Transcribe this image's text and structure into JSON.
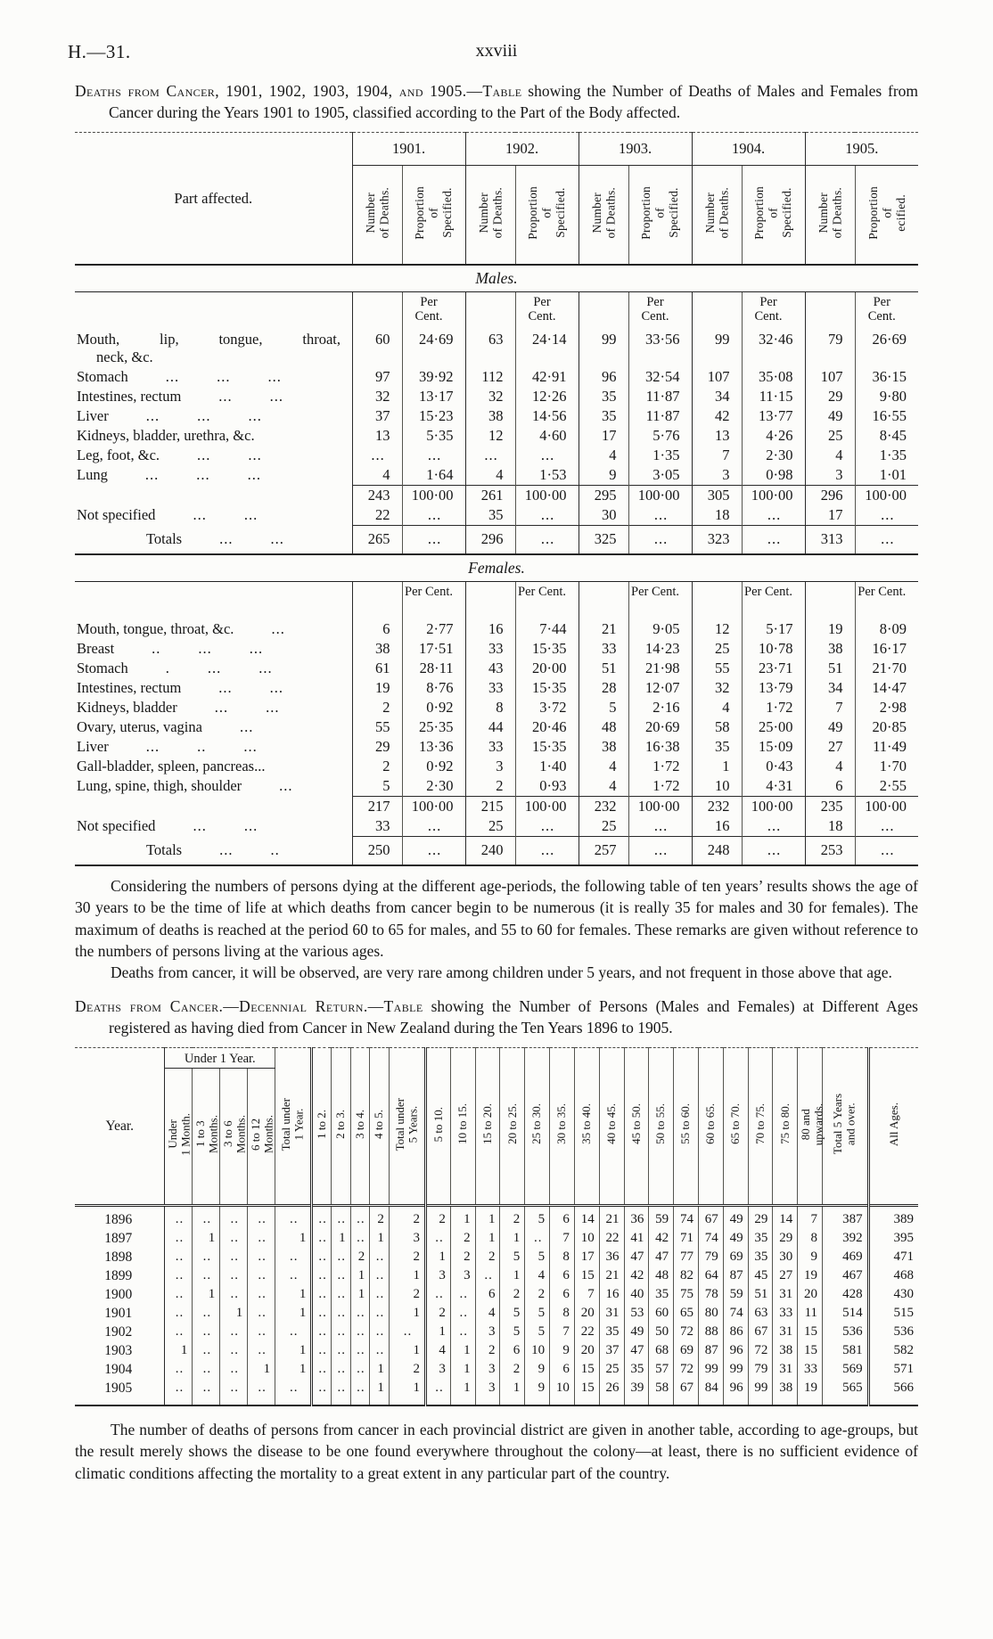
{
  "page": {
    "doc_ref": "H.—31.",
    "page_number": "xxviii"
  },
  "intro": {
    "lead": "Deaths from Cancer, 1901, 1902, 1903, 1904, and 1905.—Table",
    "rest": " showing the Number of Deaths of Males and Females from Cancer during the Years 1901 to 1905, classified according to the Part of the Body affected."
  },
  "table1": {
    "part_header": "Part affected.",
    "years": [
      "1901.",
      "1902.",
      "1903.",
      "1904.",
      "1905."
    ],
    "col_num_label": [
      "Number",
      "of Deaths."
    ],
    "col_prop_label": [
      "Proportion",
      "of",
      "Specified."
    ],
    "col_prop_label_last": [
      "Proportion",
      "of",
      "ecified."
    ],
    "males": {
      "label": "Males.",
      "percent_label": [
        "Per",
        "Cent."
      ],
      "rows": [
        {
          "part": "Mouth, lip, tongue, throat,",
          "part2": "neck, &c.",
          "justify": true,
          "dots": [],
          "values": [
            "60",
            "24·69",
            "63",
            "24·14",
            "99",
            "33·56",
            "99",
            "32·46",
            "79",
            "26·69"
          ]
        },
        {
          "part": "Stomach",
          "dots": [
            "...",
            "...",
            "..."
          ],
          "values": [
            "97",
            "39·92",
            "112",
            "42·91",
            "96",
            "32·54",
            "107",
            "35·08",
            "107",
            "36·15"
          ]
        },
        {
          "part": "Intestines, rectum",
          "dots": [
            "...",
            "..."
          ],
          "values": [
            "32",
            "13·17",
            "32",
            "12·26",
            "35",
            "11·87",
            "34",
            "11·15",
            "29",
            "9·80"
          ]
        },
        {
          "part": "Liver",
          "dots": [
            "...",
            "...",
            "..."
          ],
          "values": [
            "37",
            "15·23",
            "38",
            "14·56",
            "35",
            "11·87",
            "42",
            "13·77",
            "49",
            "16·55"
          ]
        },
        {
          "part": "Kidneys, bladder, urethra, &c.",
          "dots": [],
          "values": [
            "13",
            "5·35",
            "12",
            "4·60",
            "17",
            "5·76",
            "13",
            "4·26",
            "25",
            "8·45"
          ]
        },
        {
          "part": "Leg, foot, &c.",
          "dots": [
            "...",
            "..."
          ],
          "values": [
            "...",
            "...",
            "...",
            "...",
            "4",
            "1·35",
            "7",
            "2·30",
            "4",
            "1·35"
          ]
        },
        {
          "part": "Lung",
          "dots": [
            "...",
            "...",
            "..."
          ],
          "values": [
            "4",
            "1·64",
            "4",
            "1·53",
            "9",
            "3·05",
            "3",
            "0·98",
            "3",
            "1·01"
          ]
        }
      ],
      "subtotal": [
        "243",
        "100·00",
        "261",
        "100·00",
        "295",
        "100·00",
        "305",
        "100·00",
        "296",
        "100·00"
      ],
      "not_specified": {
        "part": "Not specified",
        "dots": [
          "...",
          "..."
        ],
        "values": [
          "22",
          "...",
          "35",
          "...",
          "30",
          "...",
          "18",
          "...",
          "17",
          "..."
        ]
      },
      "totals": {
        "part": "Totals",
        "dots": [
          "...",
          "..."
        ],
        "values": [
          "265",
          "...",
          "296",
          "...",
          "325",
          "...",
          "323",
          "...",
          "313",
          "..."
        ]
      }
    },
    "females": {
      "label": "Females.",
      "percent_label": [
        "Per Cent."
      ],
      "rows": [
        {
          "part": "Mouth, tongue, throat, &c.",
          "dots": [
            "..."
          ],
          "values": [
            "6",
            "2·77",
            "16",
            "7·44",
            "21",
            "9·05",
            "12",
            "5·17",
            "19",
            "8·09"
          ]
        },
        {
          "part": "Breast",
          "dots": [
            "..",
            "...",
            "..."
          ],
          "values": [
            "38",
            "17·51",
            "33",
            "15·35",
            "33",
            "14·23",
            "25",
            "10·78",
            "38",
            "16·17"
          ]
        },
        {
          "part": "Stomach",
          "dots": [
            ".",
            "...",
            "..."
          ],
          "values": [
            "61",
            "28·11",
            "43",
            "20·00",
            "51",
            "21·98",
            "55",
            "23·71",
            "51",
            "21·70"
          ]
        },
        {
          "part": "Intestines, rectum",
          "dots": [
            "...",
            "..."
          ],
          "values": [
            "19",
            "8·76",
            "33",
            "15·35",
            "28",
            "12·07",
            "32",
            "13·79",
            "34",
            "14·47"
          ]
        },
        {
          "part": "Kidneys, bladder",
          "dots": [
            "...",
            "..."
          ],
          "values": [
            "2",
            "0·92",
            "8",
            "3·72",
            "5",
            "2·16",
            "4",
            "1·72",
            "7",
            "2·98"
          ]
        },
        {
          "part": "Ovary, uterus, vagina",
          "dots": [
            "..."
          ],
          "values": [
            "55",
            "25·35",
            "44",
            "20·46",
            "48",
            "20·69",
            "58",
            "25·00",
            "49",
            "20·85"
          ]
        },
        {
          "part": "Liver",
          "dots": [
            "...",
            "..",
            "..."
          ],
          "values": [
            "29",
            "13·36",
            "33",
            "15·35",
            "38",
            "16·38",
            "35",
            "15·09",
            "27",
            "11·49"
          ]
        },
        {
          "part": "Gall-bladder, spleen, pancreas...",
          "dots": [],
          "values": [
            "2",
            "0·92",
            "3",
            "1·40",
            "4",
            "1·72",
            "1",
            "0·43",
            "4",
            "1·70"
          ]
        },
        {
          "part": "Lung, spine, thigh, shoulder",
          "dots": [
            "..."
          ],
          "values": [
            "5",
            "2·30",
            "2",
            "0·93",
            "4",
            "1·72",
            "10",
            "4·31",
            "6",
            "2·55"
          ]
        }
      ],
      "subtotal": [
        "217",
        "100·00",
        "215",
        "100·00",
        "232",
        "100·00",
        "232",
        "100·00",
        "235",
        "100·00"
      ],
      "not_specified": {
        "part": "Not specified",
        "dots": [
          "...",
          "..."
        ],
        "values": [
          "33",
          "...",
          "25",
          "...",
          "25",
          "...",
          "16",
          "...",
          "18",
          "..."
        ]
      },
      "totals": {
        "part": "Totals",
        "dots": [
          "...",
          ".."
        ],
        "values": [
          "250",
          "...",
          "240",
          "...",
          "257",
          "...",
          "248",
          "...",
          "253",
          "..."
        ]
      }
    }
  },
  "paragraphs": {
    "p1": "Considering the numbers of persons dying at the different age-periods, the following table of ten years’ results shows the age of 30 years to be the time of life at which deaths from cancer begin to be numerous (it is really 35 for males and 30 for females).  The maximum of deaths is reached at the period 60 to 65 for males, and 55 to 60 for females.  These remarks are given without reference to the numbers of persons living at the various ages.",
    "p2": "Deaths from cancer, it will be observed, are very rare among children under 5 years, and not frequent in those above that age."
  },
  "heading2": {
    "lead": "Deaths from Cancer.—Decennial Return.—Table",
    "rest": " showing the Number of Persons (Males and Females) at Different Ages registered as having died from Cancer in New Zealand during the Ten Years 1896 to 1905."
  },
  "table2": {
    "year_header": "Year.",
    "group_header": "Under 1 Year.",
    "month_cols": [
      [
        "Under",
        "1 Month."
      ],
      [
        "1 to 3",
        "Months."
      ],
      [
        "3 to 6",
        "Months."
      ],
      [
        "6 to 12",
        "Months."
      ]
    ],
    "cols": [
      [
        "Total under",
        "1 Year."
      ],
      [
        "1 to 2."
      ],
      [
        "2 to 3."
      ],
      [
        "3 to 4."
      ],
      [
        "4 to 5."
      ],
      [
        "Total under",
        "5 Years."
      ],
      [
        "5 to 10."
      ],
      [
        "10 to 15."
      ],
      [
        "15 to 20."
      ],
      [
        "20 to 25."
      ],
      [
        "25 to 30."
      ],
      [
        "30 to 35."
      ],
      [
        "35 to 40."
      ],
      [
        "40 to 45."
      ],
      [
        "45 to 50."
      ],
      [
        "50 to 55."
      ],
      [
        "55 to 60."
      ],
      [
        "60 to 65."
      ],
      [
        "65 to 70."
      ],
      [
        "70 to 75."
      ],
      [
        "75 to 80."
      ],
      [
        "80 and",
        "upwards."
      ],
      [
        "Total 5 Years",
        "and over."
      ],
      [
        "All Ages."
      ]
    ],
    "rows": [
      {
        "year": "1896",
        "values": [
          "..",
          "..",
          "..",
          "..",
          "..",
          "..",
          "..",
          "..",
          "2",
          "2",
          "2",
          "1",
          "1",
          "2",
          "5",
          "6",
          "14",
          "21",
          "36",
          "59",
          "74",
          "67",
          "49",
          "29",
          "14",
          "7",
          "387",
          "389"
        ]
      },
      {
        "year": "1897",
        "values": [
          "..",
          "1",
          "..",
          "..",
          "1",
          "..",
          "1",
          "..",
          "1",
          "3",
          "..",
          "2",
          "1",
          "1",
          "..",
          "7",
          "10",
          "22",
          "41",
          "42",
          "71",
          "74",
          "49",
          "35",
          "29",
          "8",
          "392",
          "395"
        ]
      },
      {
        "year": "1898",
        "values": [
          "..",
          "..",
          "..",
          "..",
          "..",
          "..",
          "..",
          "2",
          "..",
          "2",
          "1",
          "2",
          "2",
          "5",
          "5",
          "8",
          "17",
          "36",
          "47",
          "47",
          "77",
          "79",
          "69",
          "35",
          "30",
          "9",
          "469",
          "471"
        ]
      },
      {
        "year": "1899",
        "values": [
          "..",
          "..",
          "..",
          "..",
          "..",
          "..",
          "..",
          "1",
          "..",
          "1",
          "3",
          "3",
          "..",
          "1",
          "4",
          "6",
          "15",
          "21",
          "42",
          "48",
          "82",
          "64",
          "87",
          "45",
          "27",
          "19",
          "467",
          "468"
        ]
      },
      {
        "year": "1900",
        "values": [
          "..",
          "1",
          "..",
          "..",
          "1",
          "..",
          "..",
          "1",
          "..",
          "2",
          "..",
          "..",
          "6",
          "2",
          "2",
          "6",
          "7",
          "16",
          "40",
          "35",
          "75",
          "78",
          "59",
          "51",
          "31",
          "20",
          "428",
          "430"
        ]
      },
      {
        "year": "1901",
        "values": [
          "..",
          "..",
          "1",
          "..",
          "1",
          "..",
          "..",
          "..",
          "..",
          "1",
          "2",
          "..",
          "4",
          "5",
          "5",
          "8",
          "20",
          "31",
          "53",
          "60",
          "65",
          "80",
          "74",
          "63",
          "33",
          "11",
          "514",
          "515"
        ]
      },
      {
        "year": "1902",
        "values": [
          "..",
          "..",
          "..",
          "..",
          "..",
          "..",
          "..",
          "..",
          "..",
          "..",
          "1",
          "..",
          "3",
          "5",
          "5",
          "7",
          "22",
          "35",
          "49",
          "50",
          "72",
          "88",
          "86",
          "67",
          "31",
          "15",
          "536",
          "536"
        ]
      },
      {
        "year": "1903",
        "values": [
          "1",
          "..",
          "..",
          "..",
          "1",
          "..",
          "..",
          "..",
          "..",
          "1",
          "4",
          "1",
          "2",
          "6",
          "10",
          "9",
          "20",
          "37",
          "47",
          "68",
          "69",
          "87",
          "96",
          "72",
          "38",
          "15",
          "581",
          "582"
        ]
      },
      {
        "year": "1904",
        "values": [
          "..",
          "..",
          "..",
          "1",
          "1",
          "..",
          "..",
          "..",
          "1",
          "2",
          "3",
          "1",
          "3",
          "2",
          "9",
          "6",
          "15",
          "25",
          "35",
          "57",
          "72",
          "99",
          "99",
          "79",
          "31",
          "33",
          "569",
          "571"
        ]
      },
      {
        "year": "1905",
        "values": [
          "..",
          "..",
          "..",
          "..",
          "..",
          "..",
          "..",
          "..",
          "1",
          "1",
          "..",
          "1",
          "3",
          "1",
          "9",
          "10",
          "15",
          "26",
          "39",
          "58",
          "67",
          "84",
          "96",
          "99",
          "38",
          "19",
          "565",
          "566"
        ]
      }
    ]
  },
  "closing": {
    "p": "The number of deaths of persons from cancer in each provincial district are given in another table, according to age-groups, but the result merely shows the disease to be one found everywhere throughout the colony—at least, there is no sufficient evidence of climatic conditions affecting the mortality to a great extent in any particular part of the country."
  }
}
